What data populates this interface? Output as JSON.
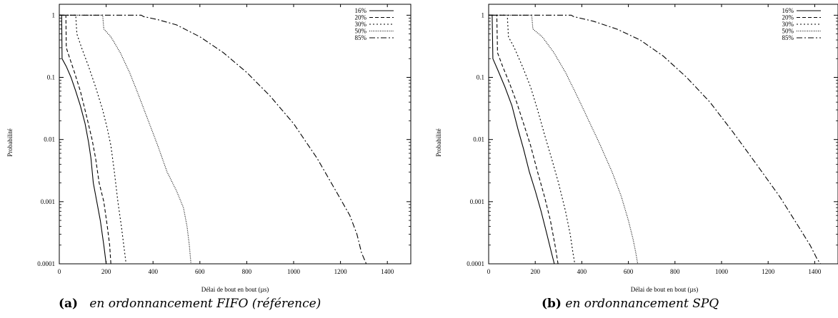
{
  "chart_data": [
    {
      "type": "line",
      "ylabel": "Probabilité",
      "xlabel": "Délai de bout en bout (µs)",
      "yscale": "log",
      "xlim": [
        0,
        1500
      ],
      "ylim": [
        0.0001,
        1.5
      ],
      "xticks": [
        "0",
        "200",
        "400",
        "600",
        "800",
        "1000",
        "1200",
        "1400"
      ],
      "yticks": [
        "1",
        "0.1",
        "0.01",
        "0.001",
        "0.0001"
      ],
      "legend_position": "top-right",
      "caption_label": "(a)",
      "caption_text": "en ordonnancement FIFO (référence)",
      "series": [
        {
          "name": "16%",
          "dash": "",
          "points": [
            [
              0,
              1
            ],
            [
              10,
              1
            ],
            [
              12,
              0.2
            ],
            [
              30,
              0.15
            ],
            [
              50,
              0.1
            ],
            [
              70,
              0.06
            ],
            [
              90,
              0.035
            ],
            [
              110,
              0.018
            ],
            [
              125,
              0.009
            ],
            [
              135,
              0.005
            ],
            [
              145,
              0.002
            ],
            [
              160,
              0.001
            ],
            [
              175,
              0.0005
            ],
            [
              190,
              0.0002
            ],
            [
              200,
              0.0001
            ]
          ]
        },
        {
          "name": "20%",
          "dash": "5,3",
          "points": [
            [
              0,
              1
            ],
            [
              28,
              1
            ],
            [
              30,
              0.3
            ],
            [
              45,
              0.2
            ],
            [
              65,
              0.12
            ],
            [
              90,
              0.06
            ],
            [
              115,
              0.025
            ],
            [
              140,
              0.01
            ],
            [
              155,
              0.005
            ],
            [
              170,
              0.002
            ],
            [
              190,
              0.001
            ],
            [
              205,
              0.0004
            ],
            [
              215,
              0.0002
            ],
            [
              220,
              0.0001
            ]
          ]
        },
        {
          "name": "30%",
          "dash": "2,3",
          "points": [
            [
              0,
              1
            ],
            [
              70,
              1
            ],
            [
              75,
              0.5
            ],
            [
              95,
              0.3
            ],
            [
              125,
              0.15
            ],
            [
              155,
              0.07
            ],
            [
              185,
              0.03
            ],
            [
              205,
              0.015
            ],
            [
              220,
              0.008
            ],
            [
              235,
              0.003
            ],
            [
              250,
              0.001
            ],
            [
              265,
              0.0004
            ],
            [
              275,
              0.0002
            ],
            [
              285,
              0.0001
            ]
          ]
        },
        {
          "name": "50%",
          "dash": "1,1.5",
          "points": [
            [
              0,
              1
            ],
            [
              185,
              1
            ],
            [
              190,
              0.6
            ],
            [
              220,
              0.45
            ],
            [
              260,
              0.25
            ],
            [
              300,
              0.12
            ],
            [
              340,
              0.05
            ],
            [
              380,
              0.02
            ],
            [
              420,
              0.008
            ],
            [
              460,
              0.003
            ],
            [
              500,
              0.0015
            ],
            [
              530,
              0.0008
            ],
            [
              545,
              0.0004
            ],
            [
              555,
              0.0002
            ],
            [
              562,
              0.0001
            ]
          ]
        },
        {
          "name": "85%",
          "dash": "8,3,2,3",
          "points": [
            [
              0,
              1
            ],
            [
              350,
              1
            ],
            [
              360,
              0.95
            ],
            [
              420,
              0.85
            ],
            [
              500,
              0.7
            ],
            [
              600,
              0.45
            ],
            [
              700,
              0.25
            ],
            [
              800,
              0.12
            ],
            [
              900,
              0.05
            ],
            [
              1000,
              0.018
            ],
            [
              1100,
              0.005
            ],
            [
              1180,
              0.0015
            ],
            [
              1240,
              0.0006
            ],
            [
              1270,
              0.0003
            ],
            [
              1290,
              0.00015
            ],
            [
              1310,
              0.0001
            ]
          ]
        }
      ]
    },
    {
      "type": "line",
      "ylabel": "Probabilité",
      "xlabel": "Délai de bout en bout (µs)",
      "yscale": "log",
      "xlim": [
        0,
        1500
      ],
      "ylim": [
        0.0001,
        1.5
      ],
      "xticks": [
        "0",
        "200",
        "400",
        "600",
        "800",
        "1000",
        "1200",
        "1400"
      ],
      "yticks": [
        "1",
        "0.1",
        "0.01",
        "0.001",
        "0.0001"
      ],
      "legend_position": "top-right",
      "caption_label": "(b)",
      "caption_text": "en ordonnancement SPQ",
      "series": [
        {
          "name": "16%",
          "dash": "",
          "points": [
            [
              0,
              1
            ],
            [
              15,
              1
            ],
            [
              18,
              0.2
            ],
            [
              40,
              0.13
            ],
            [
              70,
              0.07
            ],
            [
              100,
              0.035
            ],
            [
              125,
              0.015
            ],
            [
              150,
              0.007
            ],
            [
              175,
              0.003
            ],
            [
              200,
              0.0015
            ],
            [
              225,
              0.0007
            ],
            [
              250,
              0.0003
            ],
            [
              270,
              0.00015
            ],
            [
              282,
              0.0001
            ]
          ]
        },
        {
          "name": "20%",
          "dash": "5,3",
          "points": [
            [
              0,
              1
            ],
            [
              35,
              1
            ],
            [
              38,
              0.25
            ],
            [
              60,
              0.15
            ],
            [
              90,
              0.08
            ],
            [
              120,
              0.04
            ],
            [
              150,
              0.018
            ],
            [
              180,
              0.008
            ],
            [
              210,
              0.003
            ],
            [
              240,
              0.0012
            ],
            [
              265,
              0.0005
            ],
            [
              285,
              0.0002
            ],
            [
              298,
              0.0001
            ]
          ]
        },
        {
          "name": "30%",
          "dash": "2,3",
          "points": [
            [
              0,
              1
            ],
            [
              80,
              1
            ],
            [
              85,
              0.45
            ],
            [
              110,
              0.3
            ],
            [
              145,
              0.15
            ],
            [
              180,
              0.07
            ],
            [
              210,
              0.03
            ],
            [
              240,
              0.012
            ],
            [
              270,
              0.005
            ],
            [
              300,
              0.002
            ],
            [
              330,
              0.0007
            ],
            [
              350,
              0.0003
            ],
            [
              362,
              0.00015
            ],
            [
              370,
              0.0001
            ]
          ]
        },
        {
          "name": "50%",
          "dash": "1,1.5",
          "points": [
            [
              0,
              1
            ],
            [
              185,
              1
            ],
            [
              190,
              0.6
            ],
            [
              230,
              0.45
            ],
            [
              280,
              0.25
            ],
            [
              330,
              0.12
            ],
            [
              380,
              0.05
            ],
            [
              430,
              0.02
            ],
            [
              480,
              0.008
            ],
            [
              530,
              0.003
            ],
            [
              570,
              0.0012
            ],
            [
              600,
              0.0005
            ],
            [
              620,
              0.00025
            ],
            [
              632,
              0.00015
            ],
            [
              640,
              0.0001
            ]
          ]
        },
        {
          "name": "85%",
          "dash": "8,3,2,3",
          "points": [
            [
              0,
              1
            ],
            [
              355,
              1
            ],
            [
              365,
              0.95
            ],
            [
              450,
              0.8
            ],
            [
              550,
              0.6
            ],
            [
              650,
              0.4
            ],
            [
              750,
              0.22
            ],
            [
              850,
              0.1
            ],
            [
              950,
              0.04
            ],
            [
              1050,
              0.013
            ],
            [
              1150,
              0.004
            ],
            [
              1250,
              0.0012
            ],
            [
              1330,
              0.0004
            ],
            [
              1380,
              0.0002
            ],
            [
              1410,
              0.00012
            ],
            [
              1425,
              0.0001
            ]
          ]
        }
      ]
    }
  ]
}
